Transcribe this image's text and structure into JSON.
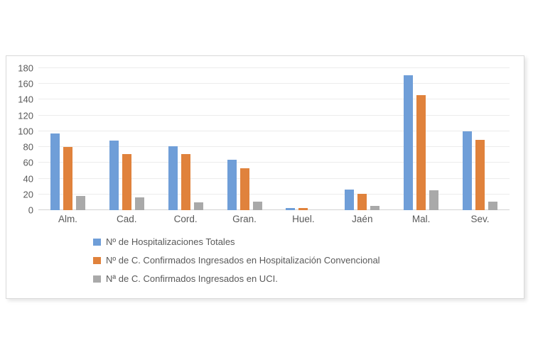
{
  "chart_data": {
    "type": "bar",
    "title": "",
    "xlabel": "",
    "ylabel": "",
    "categories": [
      "Alm.",
      "Cad.",
      "Cord.",
      "Gran.",
      "Huel.",
      "Jaén",
      "Mal.",
      "Sev."
    ],
    "series": [
      {
        "name": "Nº de Hospitalizaciones Totales",
        "color": "#6f9ed8",
        "values": [
          97,
          88,
          81,
          64,
          3,
          26,
          171,
          100
        ]
      },
      {
        "name": "Nº de C. Confirmados Ingresados en Hospitalización Convencional",
        "color": "#e0823c",
        "values": [
          80,
          71,
          71,
          53,
          3,
          21,
          146,
          89
        ]
      },
      {
        "name": "Nª de C. Confirmados Ingresados en UCI.",
        "color": "#a9a9a9",
        "values": [
          18,
          16,
          10,
          11,
          0,
          5,
          25,
          11
        ]
      }
    ],
    "ylim": [
      0,
      180
    ],
    "ytick_step": 20,
    "grid": true,
    "legend_position": "bottom-left"
  },
  "colors": {
    "axis_text": "#595959",
    "gridline": "#ececec",
    "axis_line": "#d2d2d2",
    "panel_border": "#d9d9d9"
  }
}
